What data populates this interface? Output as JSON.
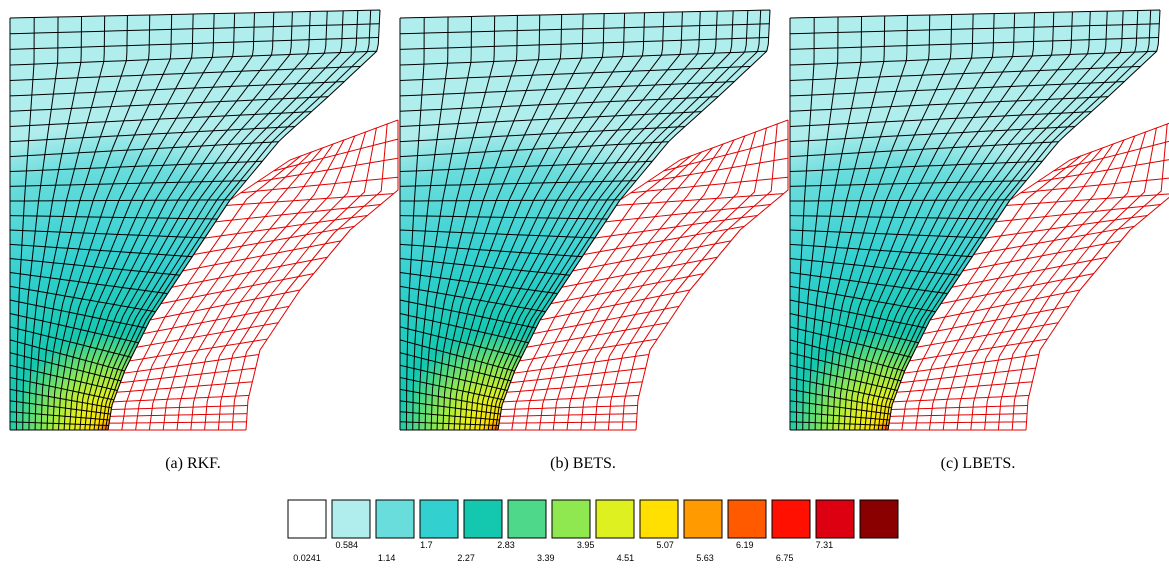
{
  "captions": [
    "(a) RKF.",
    "(b) BETS.",
    "(c) LBETS."
  ],
  "legend": {
    "colors": [
      "#ffffff",
      "#b0eded",
      "#69dcdc",
      "#33d0d0",
      "#14c8b0",
      "#4dd88a",
      "#90e850",
      "#dff020",
      "#ffe000",
      "#ff9a00",
      "#ff5a00",
      "#ff1000",
      "#dd0010",
      "#8a0000"
    ],
    "labels": [
      "0.0241",
      "0.584",
      "1.14",
      "1.7",
      "2.27",
      "2.83",
      "3.39",
      "3.95",
      "4.51",
      "5.07",
      "5.63",
      "6.19",
      "6.75",
      "7.31"
    ]
  }
}
